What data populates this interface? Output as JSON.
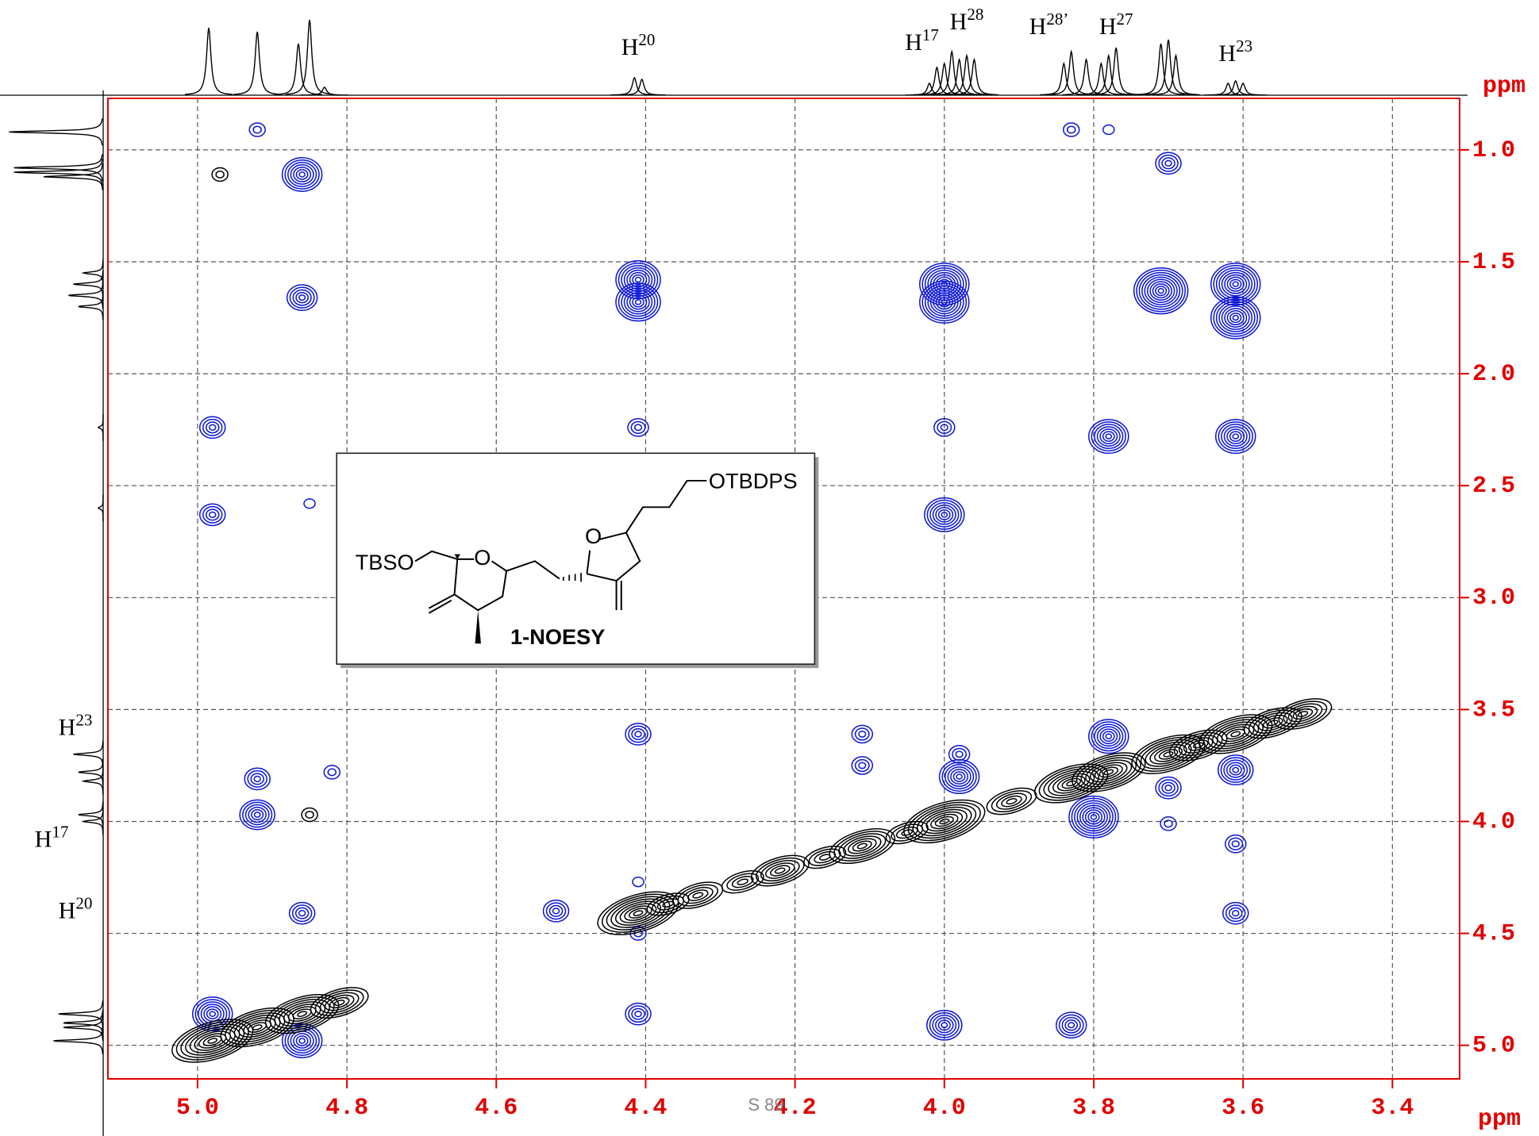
{
  "chart_data": {
    "type": "contour",
    "x_label": "ppm",
    "y_label": "ppm",
    "xlim": [
      5.12,
      3.31
    ],
    "ylim": [
      0.77,
      5.15
    ],
    "xticks": [
      {
        "value": 5,
        "label": "5.0"
      },
      4.8,
      4.6,
      4.4,
      4.2,
      {
        "value": 4,
        "label": "4.0"
      },
      3.8,
      3.6,
      3.4
    ],
    "yticks": [
      {
        "value": 1,
        "label": "1.0"
      },
      1.5,
      {
        "value": 2,
        "label": "2.0"
      },
      2.5,
      {
        "value": 3,
        "label": "3.0"
      },
      3.5,
      {
        "value": 4,
        "label": "4.0"
      },
      4.5,
      {
        "value": 5,
        "label": "5.0"
      }
    ],
    "grid": true,
    "axis_color": "#e00000",
    "series": [
      {
        "color": "#0a14d8",
        "x": [
          4.92,
          4.86,
          3.83,
          3.78,
          3.7,
          4.86,
          4.41,
          4.41,
          4.0,
          4.0,
          3.71,
          3.61,
          3.61,
          4.98,
          4.41,
          4.0,
          3.78,
          3.61,
          4.98,
          4.85,
          4.0,
          4.41,
          4.11,
          4.11,
          4.92,
          4.92,
          4.82,
          3.98,
          3.98,
          3.78,
          3.8,
          3.61,
          3.7,
          3.61,
          4.86,
          3.61,
          4.41,
          4.0,
          3.83,
          4.98,
          4.86,
          4.52,
          3.7,
          4.41,
          4.41
        ],
        "y": [
          0.91,
          1.11,
          0.91,
          0.91,
          1.06,
          1.66,
          1.58,
          1.68,
          1.6,
          1.68,
          1.63,
          1.6,
          1.75,
          2.24,
          2.24,
          2.24,
          2.28,
          2.28,
          2.63,
          2.58,
          2.63,
          3.61,
          3.61,
          3.75,
          3.81,
          3.97,
          3.78,
          3.8,
          3.7,
          3.62,
          3.98,
          3.77,
          4.01,
          4.1,
          4.41,
          4.41,
          4.86,
          4.91,
          4.91,
          4.86,
          4.98,
          4.4,
          3.85,
          4.27,
          4.5
        ],
        "intensity": [
          2,
          7,
          2,
          1,
          4,
          5,
          8,
          8,
          9,
          9,
          10,
          9,
          9,
          4,
          3,
          3,
          7,
          7,
          4,
          1,
          7,
          4,
          3,
          3,
          4,
          6,
          2,
          7,
          3,
          7,
          9,
          6,
          2,
          3,
          4,
          4,
          4,
          6,
          5,
          7,
          7,
          4,
          4,
          1,
          2
        ]
      },
      {
        "color": "#000000",
        "x": [
          4.98,
          4.92,
          4.86,
          4.81,
          4.41,
          4.37,
          4.33,
          4.27,
          4.22,
          4.16,
          4.11,
          4.05,
          4.0,
          3.91,
          3.83,
          3.78,
          3.7,
          3.66,
          3.61,
          3.56,
          3.52,
          4.97,
          4.85
        ],
        "y": [
          4.98,
          4.92,
          4.86,
          4.81,
          4.41,
          4.37,
          4.33,
          4.27,
          4.22,
          4.16,
          4.11,
          4.05,
          4.0,
          3.91,
          3.83,
          3.78,
          3.7,
          3.66,
          3.61,
          3.56,
          3.52,
          1.11,
          3.97
        ],
        "intensity": [
          9,
          8,
          8,
          6,
          9,
          4,
          5,
          4,
          6,
          4,
          7,
          4,
          9,
          5,
          8,
          8,
          8,
          6,
          8,
          6,
          6,
          2,
          2
        ]
      }
    ],
    "top_trace": {
      "x": [
        4.985,
        4.92,
        4.865,
        4.85,
        4.83,
        4.415,
        4.405,
        4.02,
        4.01,
        4.0,
        3.99,
        3.98,
        3.97,
        3.96,
        3.84,
        3.83,
        3.81,
        3.79,
        3.78,
        3.77,
        3.71,
        3.7,
        3.69,
        3.62,
        3.61,
        3.6
      ],
      "intensity": [
        0.85,
        0.8,
        0.65,
        0.95,
        0.1,
        0.22,
        0.2,
        0.15,
        0.35,
        0.4,
        0.55,
        0.45,
        0.5,
        0.45,
        0.4,
        0.55,
        0.45,
        0.4,
        0.5,
        0.6,
        0.65,
        0.7,
        0.5,
        0.15,
        0.18,
        0.15
      ]
    },
    "left_trace": {
      "y": [
        0.92,
        1.08,
        1.1,
        1.12,
        1.55,
        1.6,
        1.65,
        1.7,
        2.24,
        2.6,
        3.7,
        3.78,
        3.82,
        3.97,
        4.0,
        4.86,
        4.9,
        4.92,
        4.98
      ],
      "intensity": [
        0.95,
        0.9,
        0.9,
        0.6,
        0.2,
        0.3,
        0.35,
        0.25,
        0.05,
        0.05,
        0.3,
        0.25,
        0.2,
        0.25,
        0.2,
        0.45,
        0.4,
        0.4,
        0.5
      ]
    },
    "top_annotations": [
      {
        "text": "H",
        "sup": "20",
        "x": 4.41
      },
      {
        "text": "H",
        "sup": "17",
        "x": 4.03
      },
      {
        "text": "H",
        "sup": "28",
        "x": 3.97
      },
      {
        "text": "H",
        "sup": "28’",
        "x": 3.86
      },
      {
        "text": "H",
        "sup": "27",
        "x": 3.77
      },
      {
        "text": "H",
        "sup": "23",
        "x": 3.61
      }
    ],
    "left_annotations": [
      {
        "text": "H",
        "sup": "23",
        "y": 3.56
      },
      {
        "text": "H",
        "sup": "17",
        "y": 4.06
      },
      {
        "text": "H",
        "sup": "20",
        "y": 4.38
      }
    ],
    "structure": {
      "left_group": "TBSO",
      "right_group": "OTBDPS",
      "ring_o1": "O",
      "ring_o2": "O",
      "caption": "1-NOESY"
    },
    "footer": "S 89"
  }
}
